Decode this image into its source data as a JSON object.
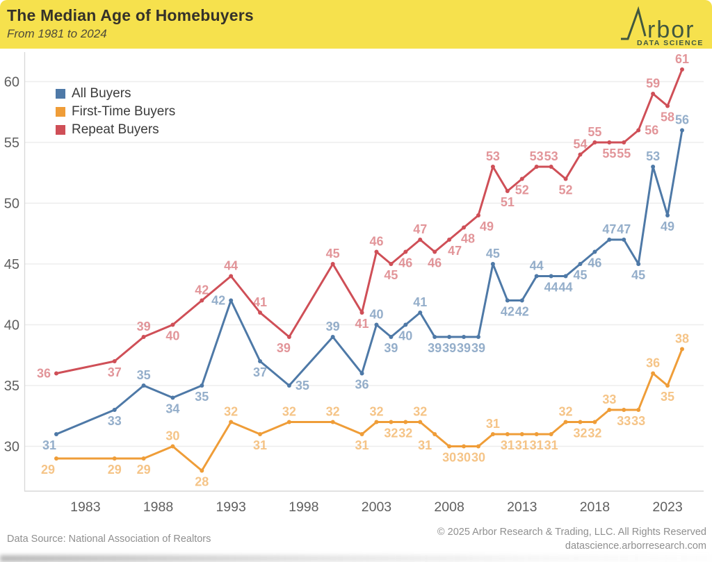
{
  "header": {
    "title": "The Median Age of Homebuyers",
    "subtitle": "From 1981 to 2024",
    "logo": {
      "wordmark": "rbor",
      "tagline": "DATA SCIENCE"
    }
  },
  "footer": {
    "source": "Data Source: National Association of Realtors",
    "copyright": "© 2025 Arbor Research & Trading, LLC. All Rights Reserved",
    "website": "datascience.arborresearch.com"
  },
  "colors": {
    "header_bg": "#f6e14d",
    "title_text": "#35322a",
    "subtitle_text": "#4e4a39",
    "logo": "#41573f",
    "grid": "#ededed",
    "axis": "#d9d9d9",
    "tick_text": "#5f5f5f",
    "legend_text": "#3b3b3b",
    "footer_text": "#8f8f8f",
    "all_buyers": "#4e79a7",
    "first_time_buyers": "#ef9d38",
    "repeat_buyers": "#cf4f57"
  },
  "chart_data": {
    "type": "line",
    "title": "The Median Age of Homebuyers",
    "subtitle": "From 1981 to 2024",
    "grid": "horizontal",
    "legend_position": "top-left",
    "x": [
      1981,
      1985,
      1987,
      1989,
      1991,
      1993,
      1995,
      1997,
      2000,
      2002,
      2003,
      2004,
      2005,
      2006,
      2007,
      2008,
      2009,
      2010,
      2011,
      2012,
      2013,
      2014,
      2015,
      2016,
      2017,
      2018,
      2019,
      2020,
      2021,
      2022,
      2023,
      2024
    ],
    "xticks": [
      1983,
      1988,
      1993,
      1998,
      2003,
      2008,
      2013,
      2018,
      2023
    ],
    "yticks": [
      30,
      35,
      40,
      45,
      50,
      55,
      60
    ],
    "ylim": [
      26.5,
      62.5
    ],
    "series": [
      {
        "name": "All Buyers",
        "color": "#4e79a7",
        "values": [
          31,
          33,
          35,
          34,
          35,
          42,
          37,
          35,
          39,
          36,
          40,
          39,
          40,
          41,
          39,
          39,
          39,
          39,
          45,
          42,
          42,
          44,
          44,
          44,
          45,
          46,
          47,
          47,
          45,
          53,
          49,
          56
        ],
        "label_pos": [
          "b:-10",
          "b",
          "a",
          "b",
          "b",
          "l",
          "b",
          "r",
          "a",
          "b",
          "a",
          "b",
          "b",
          "a",
          "b",
          "b",
          "b",
          "b",
          "a",
          "b",
          "b",
          "a",
          "b",
          "b",
          "b",
          "b",
          "a",
          "a",
          "b",
          "a",
          "b",
          "a"
        ]
      },
      {
        "name": "First-Time Buyers",
        "color": "#ef9d38",
        "values": [
          29,
          29,
          29,
          30,
          28,
          32,
          31,
          32,
          32,
          31,
          32,
          32,
          32,
          32,
          31,
          30,
          30,
          30,
          31,
          31,
          31,
          31,
          31,
          32,
          32,
          32,
          33,
          33,
          33,
          36,
          35,
          38
        ],
        "label_pos": [
          "b:-12",
          "b",
          "b",
          "a",
          "b",
          "a",
          "b",
          "a",
          "a",
          "b",
          "a",
          "b",
          "b",
          "a",
          "b:-14",
          "b",
          "b",
          "b",
          "a",
          "b",
          "b",
          "b",
          "b",
          "a",
          "b",
          "b",
          "a",
          "b",
          "b",
          "a",
          "b",
          "a"
        ]
      },
      {
        "name": "Repeat Buyers",
        "color": "#cf4f57",
        "values": [
          36,
          37,
          39,
          40,
          42,
          44,
          41,
          39,
          45,
          41,
          46,
          45,
          46,
          47,
          46,
          47,
          48,
          49,
          53,
          51,
          52,
          53,
          53,
          52,
          54,
          55,
          55,
          55,
          56,
          59,
          58,
          61
        ],
        "label_pos": [
          "l",
          "b",
          "a",
          "b",
          "a",
          "a",
          "a",
          "b:-8",
          "a",
          "b",
          "a",
          "b",
          "b",
          "a",
          "b",
          "b:8",
          "b:6",
          "b:12",
          "a",
          "b",
          "b",
          "a",
          "a",
          "b",
          "a",
          "a",
          "b",
          "b",
          "r",
          "a",
          "b",
          "a"
        ]
      }
    ]
  }
}
